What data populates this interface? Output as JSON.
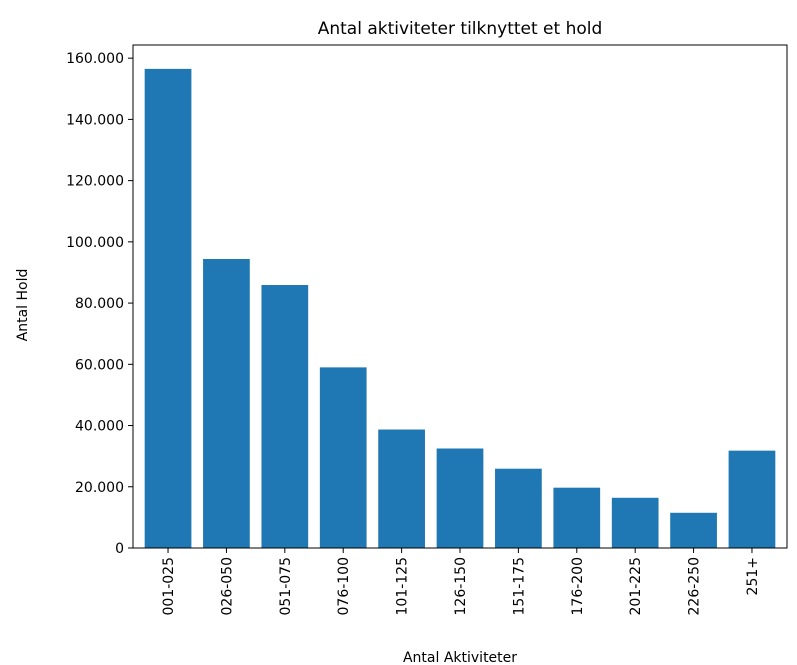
{
  "chart_data": {
    "type": "bar",
    "title": "Antal aktiviteter tilknyttet et hold",
    "xlabel": "Antal Aktiviteter",
    "ylabel": "Antal Hold",
    "categories": [
      "001-025",
      "026-050",
      "051-075",
      "076-100",
      "101-125",
      "126-150",
      "151-175",
      "176-200",
      "201-225",
      "226-250",
      "251+"
    ],
    "values": [
      156500,
      94400,
      85900,
      59000,
      38700,
      32500,
      25900,
      19700,
      16400,
      11500,
      31800
    ],
    "color": "#1f77b4",
    "ylim": [
      0,
      164300
    ],
    "yticks": [
      0,
      {
        "value": 20000,
        "label": "20.000"
      },
      {
        "value": 40000,
        "label": "40.000"
      },
      {
        "value": 60000,
        "label": "60.000"
      },
      {
        "value": 80000,
        "label": "80.000"
      },
      {
        "value": 100000,
        "label": "100.000"
      },
      {
        "value": 120000,
        "label": "120.000"
      },
      {
        "value": 140000,
        "label": "140.000"
      },
      {
        "value": 160000,
        "label": "160.000"
      }
    ],
    "grid": false
  }
}
